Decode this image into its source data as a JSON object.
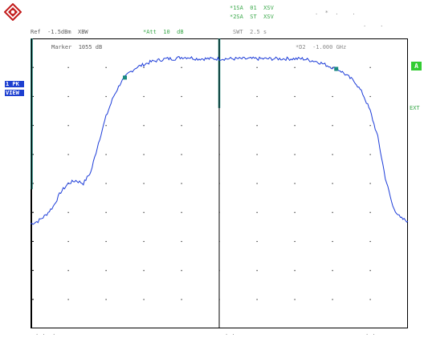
{
  "header": {
    "trace1": "*1SA  01  XSV",
    "trace2": "*2SA  ST  XSV",
    "right_info1": ".  *  .    .",
    "right_info2": ".    .",
    "left_param": "Ref  -1.5dBm  XBW",
    "mid_param": "*Att  10  dB",
    "mid_param2": "SWT  2.5 s",
    "marker_readout": "Marker  1055 dB",
    "marker2_readout": "*D2  -1.000 GHz"
  },
  "sidebar": {
    "left_box1": "1 PK",
    "left_box2": "VIEW",
    "right_marker": "A",
    "right_label": "EXT"
  },
  "footer": {
    "label_left": ". .  .",
    "label_mid": ". .",
    "label_right": ". ."
  },
  "colors": {
    "trace": "#1c3cd8",
    "grid": "#000000",
    "marker_line": "#1a8a80",
    "accent_blue": "#1d3fd0",
    "accent_green": "#33cc33"
  },
  "chart_data": {
    "type": "line",
    "grid": true,
    "grid_divisions": [
      10,
      10
    ],
    "x": [
      0,
      0.2,
      0.4,
      0.6,
      0.8,
      1.0,
      1.2,
      1.4,
      1.6,
      1.8,
      2.0,
      2.2,
      2.4,
      2.6,
      2.8,
      3.0,
      3.2,
      3.4,
      3.6,
      3.8,
      4.0,
      4.2,
      4.4,
      4.6,
      4.8,
      5.0,
      5.2,
      5.4,
      5.6,
      5.8,
      6.0,
      6.2,
      6.4,
      6.6,
      6.8,
      7.0,
      7.2,
      7.4,
      7.6,
      7.8,
      8.0,
      8.2,
      8.4,
      8.6,
      8.8,
      9.0,
      9.2,
      9.4,
      9.6,
      9.8,
      10.0
    ],
    "y": [
      3.6,
      3.7,
      3.9,
      4.2,
      4.7,
      5.0,
      5.1,
      5.0,
      5.4,
      6.4,
      7.3,
      8.0,
      8.5,
      8.8,
      9.0,
      9.1,
      9.2,
      9.25,
      9.3,
      9.3,
      9.35,
      9.35,
      9.3,
      9.3,
      9.3,
      9.3,
      9.3,
      9.3,
      9.3,
      9.3,
      9.3,
      9.3,
      9.3,
      9.3,
      9.3,
      9.3,
      9.3,
      9.25,
      9.2,
      9.1,
      9.0,
      8.9,
      8.7,
      8.5,
      8.1,
      7.5,
      6.6,
      5.2,
      4.2,
      3.8,
      3.7
    ],
    "ylim": [
      0,
      10
    ],
    "xlim": [
      0,
      10
    ],
    "vertical_markers_x": [
      0,
      5
    ],
    "marker_points_x": [
      2.5,
      8.1
    ]
  }
}
